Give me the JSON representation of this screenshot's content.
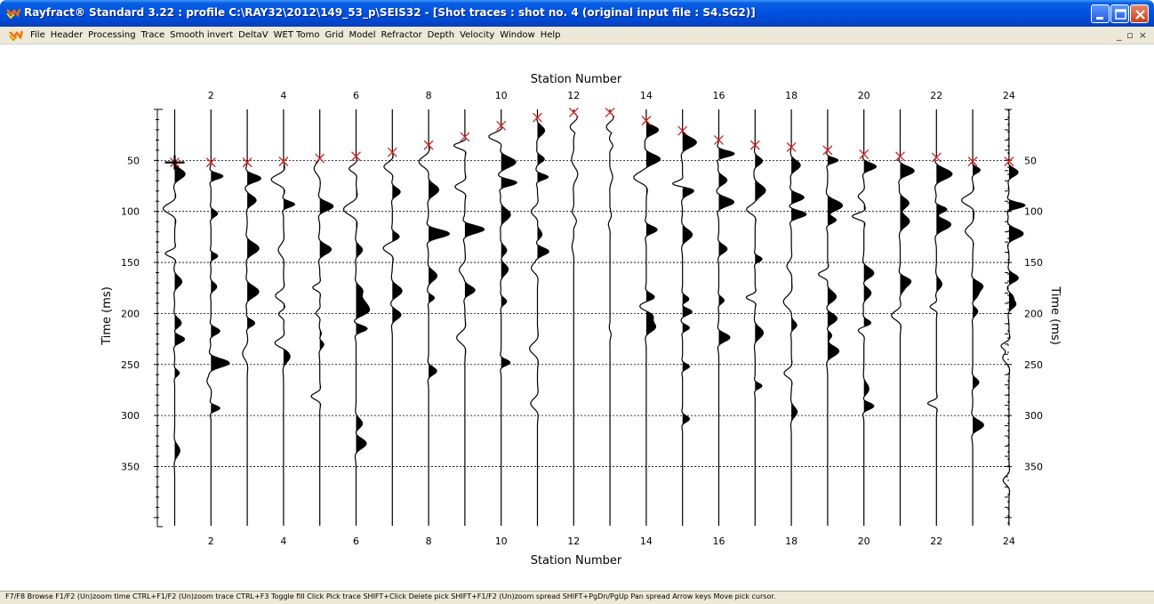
{
  "window": {
    "title": "Rayfract® Standard 3.22 : profile C:\\RAY32\\2012\\149_53_p\\SEIS32 - [Shot traces : shot no. 4 (original input file : S4.SG2)]",
    "icon": "rayfract-icon"
  },
  "menu": {
    "items": [
      "File",
      "Header",
      "Processing",
      "Trace",
      "Smooth invert",
      "DeltaV",
      "WET Tomo",
      "Grid",
      "Model",
      "Refractor",
      "Depth",
      "Velocity",
      "Window",
      "Help"
    ],
    "mdi_minimize": "_",
    "mdi_restore": "▫",
    "mdi_close": "×"
  },
  "plot": {
    "x_title_top": "Station Number",
    "x_title_bottom": "Station Number",
    "y_title_left": "Time (ms)",
    "y_title_right": "Time (ms)",
    "x_tick_labels": [
      2,
      4,
      6,
      8,
      10,
      12,
      14,
      16,
      18,
      20,
      22,
      24
    ],
    "y_tick_labels": [
      50,
      100,
      150,
      200,
      250,
      300,
      350
    ],
    "station_range": [
      1,
      24
    ],
    "time_range_ms": [
      0,
      410
    ],
    "grid_color": "#000000",
    "pick_color": "#d62020",
    "cursor_color": "#000000",
    "trace_color": "#000000"
  },
  "chart_data": {
    "type": "seismic-wiggle",
    "stations": [
      1,
      2,
      3,
      4,
      5,
      6,
      7,
      8,
      9,
      10,
      11,
      12,
      13,
      14,
      15,
      16,
      17,
      18,
      19,
      20,
      21,
      22,
      23,
      24
    ],
    "first_break_picks_ms": [
      52,
      52,
      52,
      51,
      48,
      46,
      42,
      35,
      27,
      16,
      8,
      3,
      3,
      11,
      21,
      30,
      35,
      37,
      40,
      44,
      46,
      47,
      51,
      51
    ],
    "pick_cursor_station": 1,
    "y_ticks": [
      50,
      100,
      150,
      200,
      250,
      300,
      350
    ],
    "x_ticks": [
      2,
      4,
      6,
      8,
      10,
      12,
      14,
      16,
      18,
      20,
      22,
      24
    ],
    "xlabel": "Station Number",
    "ylabel": "Time (ms)"
  },
  "status": {
    "text": "F7/F8 Browse   F1/F2 (Un)zoom time   CTRL+F1/F2 (Un)zoom trace   CTRL+F3 Toggle fill   Click Pick trace   SHIFT+Click Delete pick   SHIFT+F1/F2 (Un)zoom spread   SHIFT+PgDn/PgUp Pan spread   Arrow keys Move pick cursor."
  }
}
